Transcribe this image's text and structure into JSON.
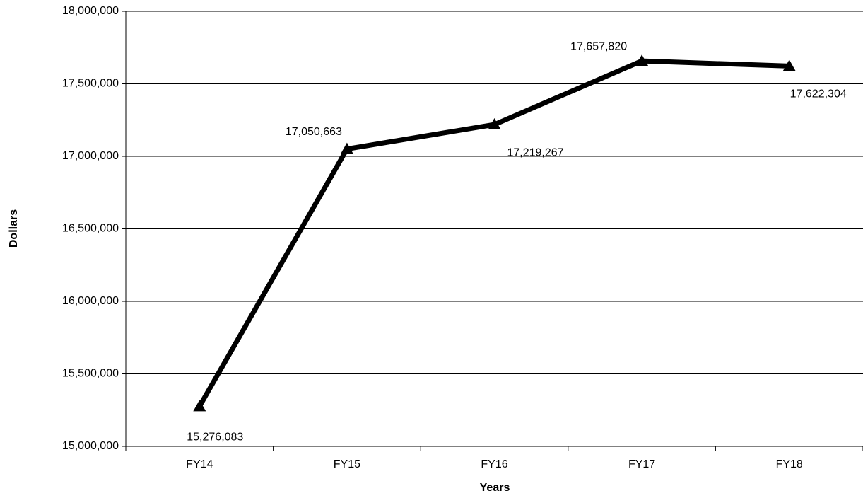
{
  "chart_data": {
    "type": "line",
    "x_label": "Years",
    "y_label": "Dollars",
    "categories": [
      "FY14",
      "FY15",
      "FY16",
      "FY17",
      "FY18"
    ],
    "values": [
      15276083,
      17050663,
      17219267,
      17657820,
      17622304
    ],
    "value_labels": [
      "15,276,083",
      "17,050,663",
      "17,219,267",
      "17,657,820",
      "17,622,304"
    ],
    "color": "#000000",
    "marker": "triangle",
    "ylim": [
      15000000,
      18000000
    ],
    "yticks": [
      {
        "value": 15000000,
        "label": "15,000,000"
      },
      {
        "value": 15500000,
        "label": "15,500,000"
      },
      {
        "value": 16000000,
        "label": "16,000,000"
      },
      {
        "value": 16500000,
        "label": "16,500,000"
      },
      {
        "value": 17000000,
        "label": "17,000,000"
      },
      {
        "value": 17500000,
        "label": "17,500,000"
      },
      {
        "value": 18000000,
        "label": "18,000,000"
      }
    ],
    "grid": true
  }
}
